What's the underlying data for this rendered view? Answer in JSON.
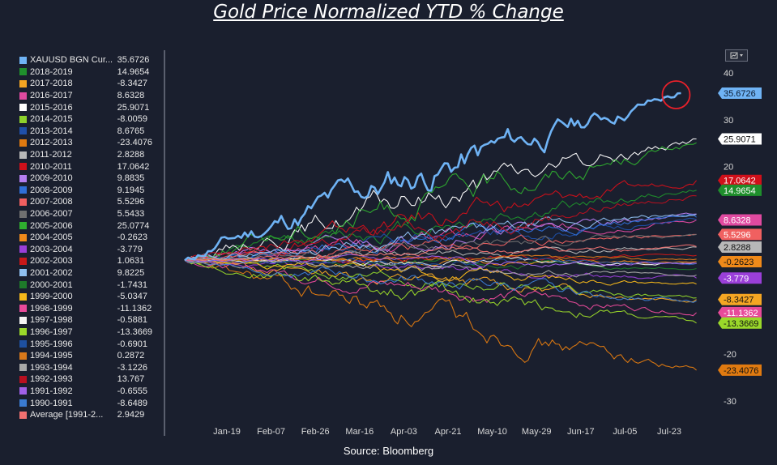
{
  "title": "Gold Price Normalized YTD % Change",
  "source": "Source: Bloomberg",
  "chart_data": {
    "type": "line",
    "title": "Gold Price Normalized YTD % Change",
    "xlabel": "",
    "ylabel": "",
    "x_ticks": [
      "Jan-19",
      "Feb-07",
      "Feb-26",
      "Mar-16",
      "Apr-03",
      "Apr-21",
      "May-10",
      "May-29",
      "Jun-17",
      "Jul-05",
      "Jul-23"
    ],
    "y_ticks": [
      40,
      30,
      20,
      -20,
      -30
    ],
    "ylim": [
      -30,
      40
    ],
    "grid": false,
    "legend_position": "left",
    "series": [
      {
        "name": "XAUUSD BGN Cur...",
        "value": "35.6726",
        "color": "#6fb3f5",
        "highlight": true,
        "final": 35.6726,
        "last_x": 0.96,
        "seed": 11
      },
      {
        "name": "2018-2019",
        "value": "14.9654",
        "color": "#1f8f2c",
        "final": 14.9654,
        "last_x": 0.99,
        "seed": 12
      },
      {
        "name": "2017-2018",
        "value": "-8.3427",
        "color": "#f5a623",
        "final": -8.3427,
        "last_x": 0.99,
        "seed": 13
      },
      {
        "name": "2016-2017",
        "value": "8.6328",
        "color": "#e04aa0",
        "final": 8.6328,
        "last_x": 0.99,
        "seed": 14
      },
      {
        "name": "2015-2016",
        "value": "25.9071",
        "color": "#ffffff",
        "final": 25.9071,
        "last_x": 0.99,
        "seed": 15
      },
      {
        "name": "2014-2015",
        "value": "-8.0059",
        "color": "#8ed22c",
        "final": -8.0059,
        "last_x": 0.99,
        "seed": 16
      },
      {
        "name": "2013-2014",
        "value": "8.6765",
        "color": "#1f4fa8",
        "final": 8.6765,
        "last_x": 0.99,
        "seed": 17
      },
      {
        "name": "2012-2013",
        "value": "-23.4076",
        "color": "#e07a10",
        "final": -23.4076,
        "last_x": 0.99,
        "seed": 18
      },
      {
        "name": "2011-2012",
        "value": "2.8288",
        "color": "#b8b8b8",
        "final": 2.8288,
        "last_x": 0.99,
        "seed": 19
      },
      {
        "name": "2010-2011",
        "value": "17.0642",
        "color": "#d0101a",
        "final": 17.0642,
        "last_x": 0.99,
        "seed": 20
      },
      {
        "name": "2009-2010",
        "value": "9.8835",
        "color": "#b57ef0",
        "final": 9.8835,
        "last_x": 0.99,
        "seed": 21
      },
      {
        "name": "2008-2009",
        "value": "9.1945",
        "color": "#2f6fd8",
        "final": 9.1945,
        "last_x": 0.99,
        "seed": 22
      },
      {
        "name": "2007-2008",
        "value": "5.5296",
        "color": "#f06060",
        "final": 5.5296,
        "last_x": 0.99,
        "seed": 23
      },
      {
        "name": "2006-2007",
        "value": "5.5433",
        "color": "#707070",
        "final": 5.5433,
        "last_x": 0.99,
        "seed": 24
      },
      {
        "name": "2005-2006",
        "value": "25.0774",
        "color": "#2fae2f",
        "final": 25.0774,
        "last_x": 0.99,
        "seed": 25
      },
      {
        "name": "2004-2005",
        "value": "-0.2623",
        "color": "#f08a1a",
        "final": -0.2623,
        "last_x": 0.99,
        "seed": 26
      },
      {
        "name": "2003-2004",
        "value": "-3.779",
        "color": "#9a3fd8",
        "final": -3.779,
        "last_x": 0.99,
        "seed": 27
      },
      {
        "name": "2002-2003",
        "value": "1.0631",
        "color": "#c81818",
        "final": 1.0631,
        "last_x": 0.99,
        "seed": 28
      },
      {
        "name": "2001-2002",
        "value": "9.8225",
        "color": "#8fc0f0",
        "final": 9.8225,
        "last_x": 0.99,
        "seed": 29
      },
      {
        "name": "2000-2001",
        "value": "-1.7431",
        "color": "#1e7a2a",
        "final": -1.7431,
        "last_x": 0.99,
        "seed": 30
      },
      {
        "name": "1999-2000",
        "value": "-5.0347",
        "color": "#f5b81a",
        "final": -5.0347,
        "last_x": 0.99,
        "seed": 31
      },
      {
        "name": "1998-1999",
        "value": "-11.1362",
        "color": "#e84a9a",
        "final": -11.1362,
        "last_x": 0.99,
        "seed": 32
      },
      {
        "name": "1997-1998",
        "value": "-0.5881",
        "color": "#f4f4f4",
        "final": -0.5881,
        "last_x": 0.99,
        "seed": 33
      },
      {
        "name": "1996-1997",
        "value": "-13.3669",
        "color": "#9ad82a",
        "final": -13.3669,
        "last_x": 0.99,
        "seed": 34
      },
      {
        "name": "1995-1996",
        "value": "-0.6901",
        "color": "#1e50a0",
        "final": -0.6901,
        "last_x": 0.99,
        "seed": 35
      },
      {
        "name": "1994-1995",
        "value": "0.2872",
        "color": "#d8781a",
        "final": 0.2872,
        "last_x": 0.99,
        "seed": 36
      },
      {
        "name": "1993-1994",
        "value": "-3.1226",
        "color": "#a8a8a8",
        "final": -3.1226,
        "last_x": 0.99,
        "seed": 37
      },
      {
        "name": "1992-1993",
        "value": "13.767",
        "color": "#b81020",
        "final": 13.767,
        "last_x": 0.99,
        "seed": 38
      },
      {
        "name": "1991-1992",
        "value": "-0.6555",
        "color": "#a060e8",
        "final": -0.6555,
        "last_x": 0.99,
        "seed": 39
      },
      {
        "name": "1990-1991",
        "value": "-8.6489",
        "color": "#3a7ad0",
        "final": -8.6489,
        "last_x": 0.99,
        "seed": 40
      },
      {
        "name": "Average [1991-2...",
        "value": "2.9429",
        "color": "#f07070",
        "final": 2.9429,
        "last_x": 0.99,
        "seed": 41
      }
    ],
    "right_labels": [
      {
        "text": "35.6726",
        "value": 35.6726,
        "bg": "#6fb3f5",
        "fg": "#0a1a30"
      },
      {
        "text": "25.9071",
        "value": 25.9071,
        "bg": "#ffffff",
        "fg": "#111111"
      },
      {
        "text": "17.0642",
        "value": 17.0642,
        "bg": "#d0101a",
        "fg": "#ffffff"
      },
      {
        "text": "14.9654",
        "value": 14.9654,
        "bg": "#1f8f2c",
        "fg": "#ffffff"
      },
      {
        "text": "8.6328",
        "value": 8.6328,
        "bg": "#e04aa0",
        "fg": "#ffffff"
      },
      {
        "text": "5.5296",
        "value": 5.5296,
        "bg": "#f06060",
        "fg": "#ffffff"
      },
      {
        "text": "2.8288",
        "value": 2.8288,
        "bg": "#b8b8b8",
        "fg": "#111111"
      },
      {
        "text": "-0.2623",
        "value": -0.2623,
        "bg": "#f08a1a",
        "fg": "#111111"
      },
      {
        "text": "-3.779",
        "value": -3.779,
        "bg": "#9a3fd8",
        "fg": "#ffffff"
      },
      {
        "text": "-8.3427",
        "value": -8.3427,
        "bg": "#f5a623",
        "fg": "#111111"
      },
      {
        "text": "-11.1362",
        "value": -11.1362,
        "bg": "#e84a9a",
        "fg": "#ffffff"
      },
      {
        "text": "-13.3669",
        "value": -13.3669,
        "bg": "#9ad82a",
        "fg": "#111111"
      },
      {
        "text": "-23.4076",
        "value": -23.4076,
        "bg": "#e07a10",
        "fg": "#111111"
      }
    ],
    "annotation": {
      "type": "circle",
      "series": "XAUUSD BGN Cur...",
      "color": "#e8202a"
    }
  }
}
